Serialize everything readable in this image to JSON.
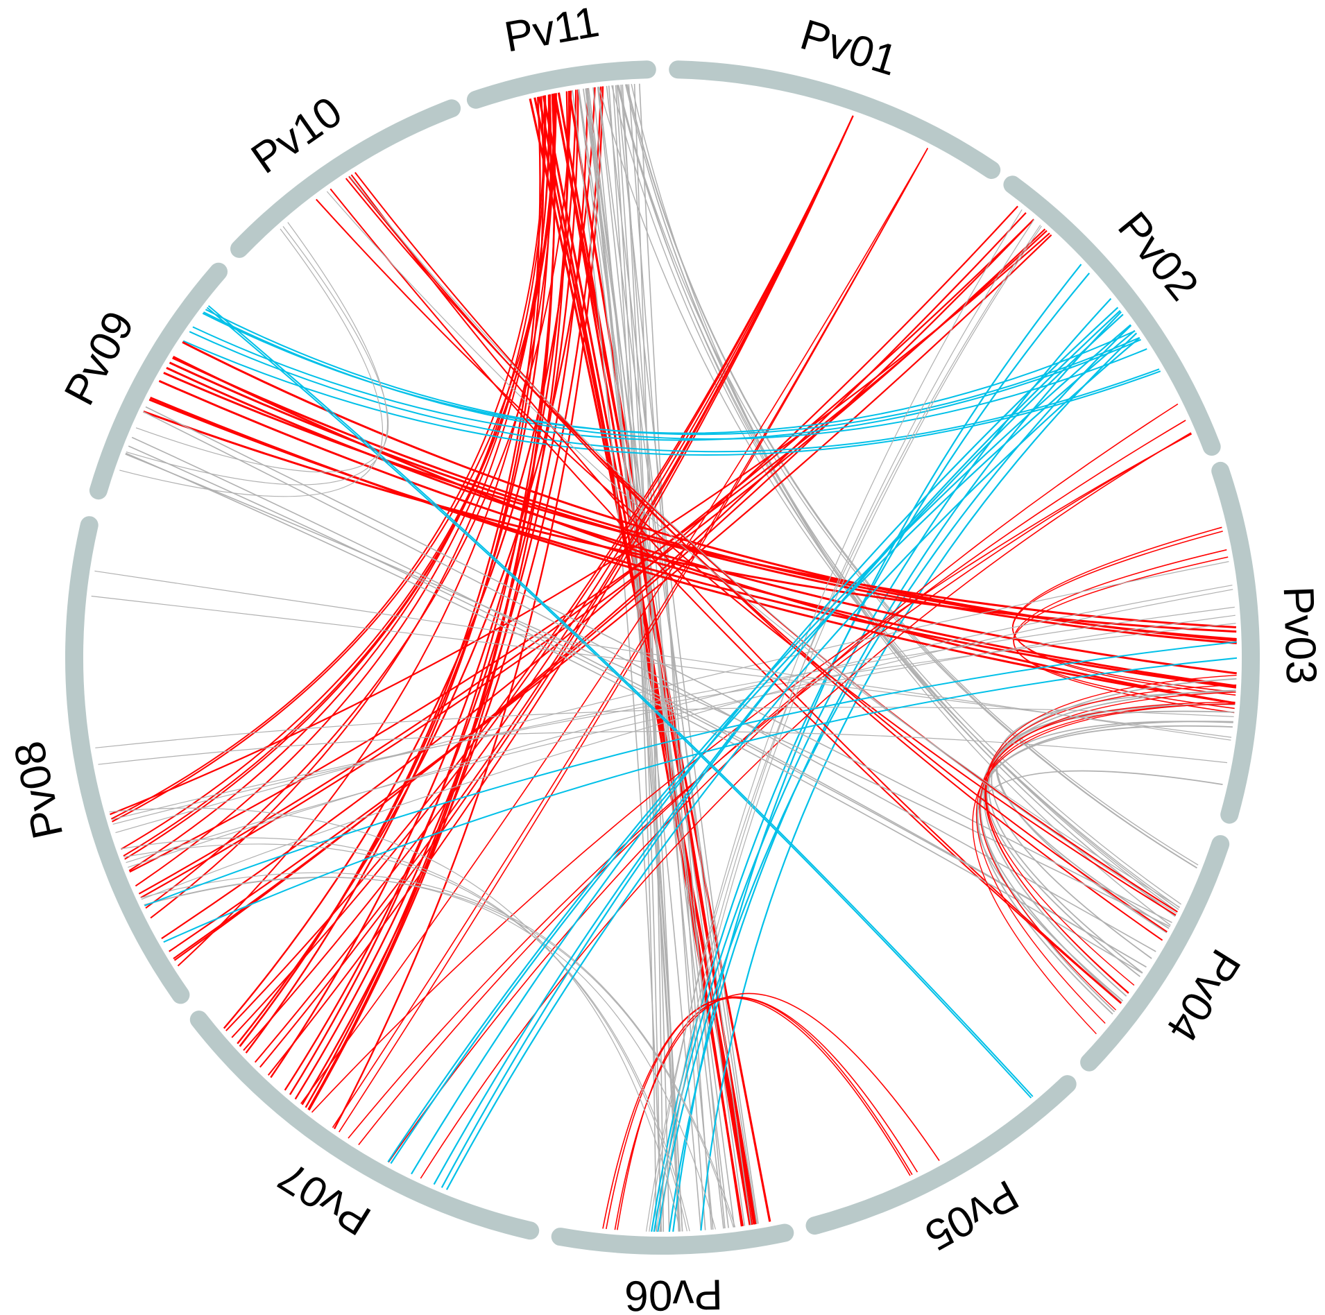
{
  "colors": {
    "ideogram": "#b9c9c9",
    "background": "#ffffff",
    "label": "#000000",
    "link_red": "#ff0000",
    "link_cyan": "#00c0e8",
    "link_gray": "#b0b0b0"
  },
  "chromosomes": [
    {
      "id": "Pv01",
      "label": "Pv01"
    },
    {
      "id": "Pv02",
      "label": "Pv02"
    },
    {
      "id": "Pv03",
      "label": "Pv03"
    },
    {
      "id": "Pv04",
      "label": "Pv04"
    },
    {
      "id": "Pv05",
      "label": "Pv05"
    },
    {
      "id": "Pv06",
      "label": "Pv06"
    },
    {
      "id": "Pv07",
      "label": "Pv07"
    },
    {
      "id": "Pv08",
      "label": "Pv08"
    },
    {
      "id": "Pv09",
      "label": "Pv09"
    },
    {
      "id": "Pv10",
      "label": "Pv10"
    },
    {
      "id": "Pv11",
      "label": "Pv11"
    }
  ]
}
